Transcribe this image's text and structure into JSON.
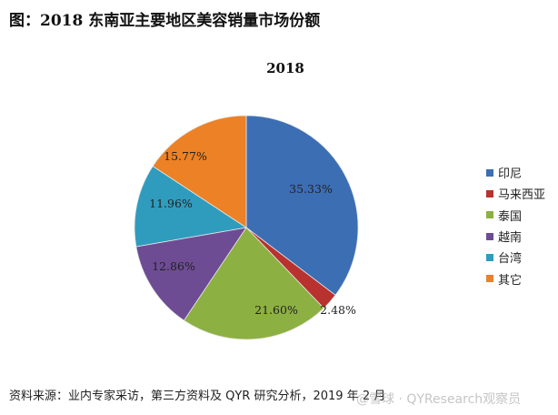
{
  "header": {
    "title": "图：2018 东南亚主要地区美容销量市场份额"
  },
  "chart_data": {
    "type": "pie",
    "title": "2018",
    "categories": [
      "印尼",
      "马来西亚",
      "泰国",
      "越南",
      "台湾",
      "其它"
    ],
    "values": [
      35.33,
      2.48,
      21.6,
      12.86,
      11.96,
      15.77
    ],
    "labels": [
      "35.33%",
      "2.48%",
      "21.60%",
      "12.86%",
      "11.96%",
      "15.77%"
    ],
    "colors": [
      "#3C6EB4",
      "#B8322F",
      "#8DB043",
      "#6D4C94",
      "#2F9CBD",
      "#EC8125"
    ],
    "legend_position": "right",
    "start_angle": "12 o'clock, clockwise"
  },
  "footer": {
    "source": "资料来源：业内专家采访，第三方资料及 QYR 研究分析，2019 年 2 月",
    "watermark": "@雪球 · QYResearch观察员"
  }
}
